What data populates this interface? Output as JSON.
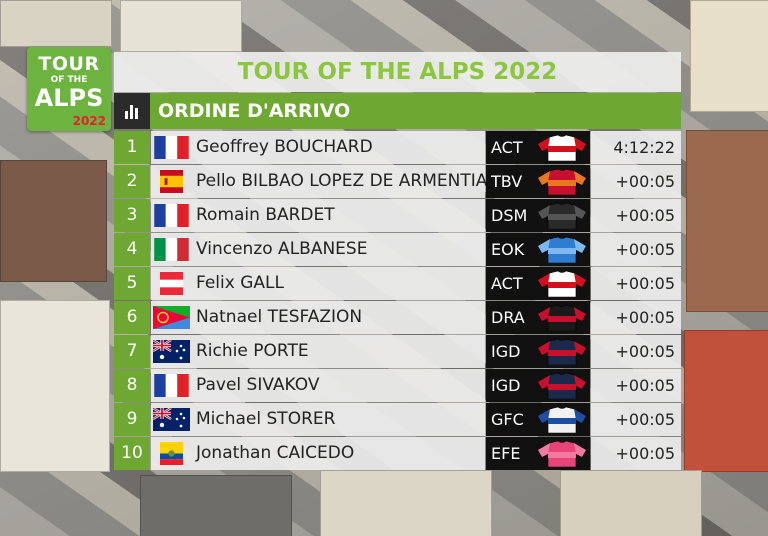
{
  "logo": {
    "line1": "TOUR",
    "line2": "OF THE",
    "line3": "ALPS",
    "year": "2022"
  },
  "title": "TOUR OF THE ALPS 2022",
  "header": "ORDINE D'ARRIVO",
  "colors": {
    "green": "#6ea832",
    "title_green": "#8cc63f",
    "row_bg": "#ececec",
    "team_bg": "#111111"
  },
  "results": [
    {
      "pos": "1",
      "flag": "france-flag",
      "name": "Geoffrey BOUCHARD",
      "team": "ACT",
      "jersey": [
        "#ffffff",
        "#d4101e"
      ],
      "time": "4:12:22"
    },
    {
      "pos": "2",
      "flag": "spain-flag",
      "name": "Pello BILBAO LOPEZ DE ARMENTIA",
      "team": "TBV",
      "jersey": [
        "#c8102e",
        "#e87722"
      ],
      "time": "+00:05"
    },
    {
      "pos": "3",
      "flag": "france-flag",
      "name": "Romain BARDET",
      "team": "DSM",
      "jersey": [
        "#2a2a2a",
        "#555555"
      ],
      "time": "+00:05"
    },
    {
      "pos": "4",
      "flag": "italy-flag",
      "name": "Vincenzo ALBANESE",
      "team": "EOK",
      "jersey": [
        "#2e7dd1",
        "#7fb8ee"
      ],
      "time": "+00:05"
    },
    {
      "pos": "5",
      "flag": "austria-flag",
      "name": "Felix GALL",
      "team": "ACT",
      "jersey": [
        "#ffffff",
        "#d4101e"
      ],
      "time": "+00:05"
    },
    {
      "pos": "6",
      "flag": "eritrea-flag",
      "name": "Natnael TESFAZION",
      "team": "DRA",
      "jersey": [
        "#1a1a1a",
        "#c8102e"
      ],
      "time": "+00:05"
    },
    {
      "pos": "7",
      "flag": "australia-flag",
      "name": "Richie PORTE",
      "team": "IGD",
      "jersey": [
        "#1b2a4a",
        "#c8102e"
      ],
      "time": "+00:05"
    },
    {
      "pos": "8",
      "flag": "france-flag",
      "name": "Pavel SIVAKOV",
      "team": "IGD",
      "jersey": [
        "#1b2a4a",
        "#c8102e"
      ],
      "time": "+00:05"
    },
    {
      "pos": "9",
      "flag": "australia-flag",
      "name": "Michael STORER",
      "team": "GFC",
      "jersey": [
        "#f2f2f2",
        "#1f4fa3"
      ],
      "time": "+00:05"
    },
    {
      "pos": "10",
      "flag": "ecuador-flag",
      "name": "Jonathan CAICEDO",
      "team": "EFE",
      "jersey": [
        "#e8447a",
        "#f27aa0"
      ],
      "time": "+00:05"
    }
  ]
}
